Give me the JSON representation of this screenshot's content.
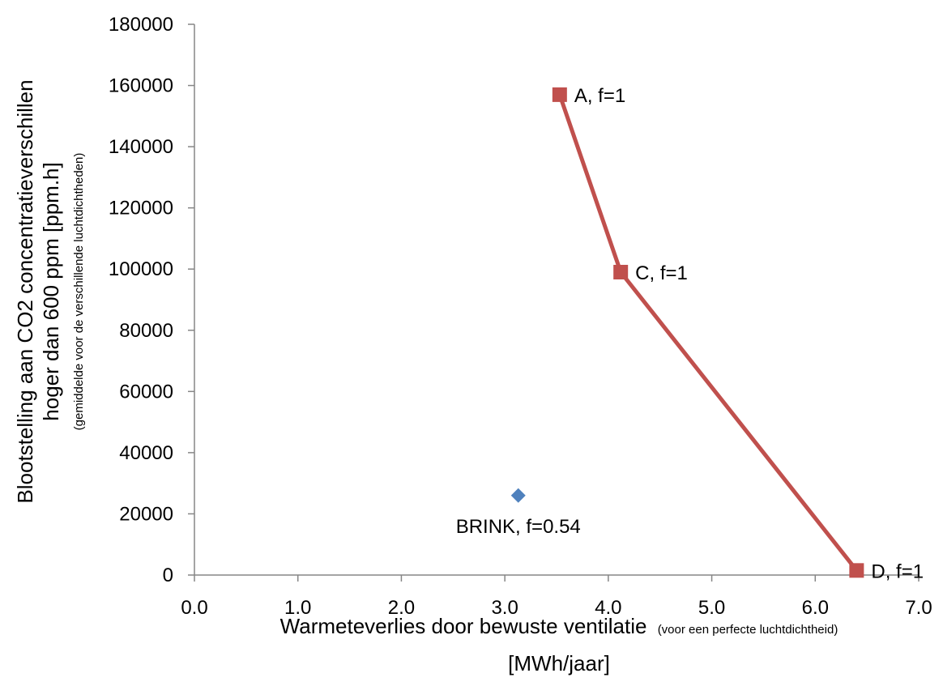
{
  "chart_data": {
    "type": "scatter",
    "title": "",
    "xlabel": {
      "main": "Warmeteverlies  door bewuste ventilatie",
      "note": "(voor een perfecte luchtdichtheid)",
      "unit": "[MWh/jaar]"
    },
    "ylabel": {
      "line1": "Blootstelling aan CO2 concentratieverschillen",
      "line2": "hoger dan 600 ppm [ppm.h]",
      "note": "(gemiddelde voor de verschillende luchtdichtheden)"
    },
    "xlim": [
      0,
      7
    ],
    "ylim": [
      0,
      180000
    ],
    "x_ticks": [
      "0.0",
      "1.0",
      "2.0",
      "3.0",
      "4.0",
      "5.0",
      "6.0",
      "7.0"
    ],
    "y_ticks": [
      "0",
      "20000",
      "40000",
      "60000",
      "80000",
      "100000",
      "120000",
      "140000",
      "160000",
      "180000"
    ],
    "series": [
      {
        "color": "#c0504d",
        "marker": "square",
        "connected": true,
        "points": [
          {
            "x": 3.53,
            "y": 157000,
            "label": "A, f=1"
          },
          {
            "x": 4.12,
            "y": 99000,
            "label": "C, f=1"
          },
          {
            "x": 6.4,
            "y": 1500,
            "label": "D, f=1"
          }
        ]
      },
      {
        "color": "#4f81bd",
        "marker": "diamond",
        "connected": false,
        "points": [
          {
            "x": 3.13,
            "y": 26000,
            "label": "BRINK, f=0.54"
          }
        ]
      }
    ],
    "grid": false,
    "legend": "none"
  }
}
